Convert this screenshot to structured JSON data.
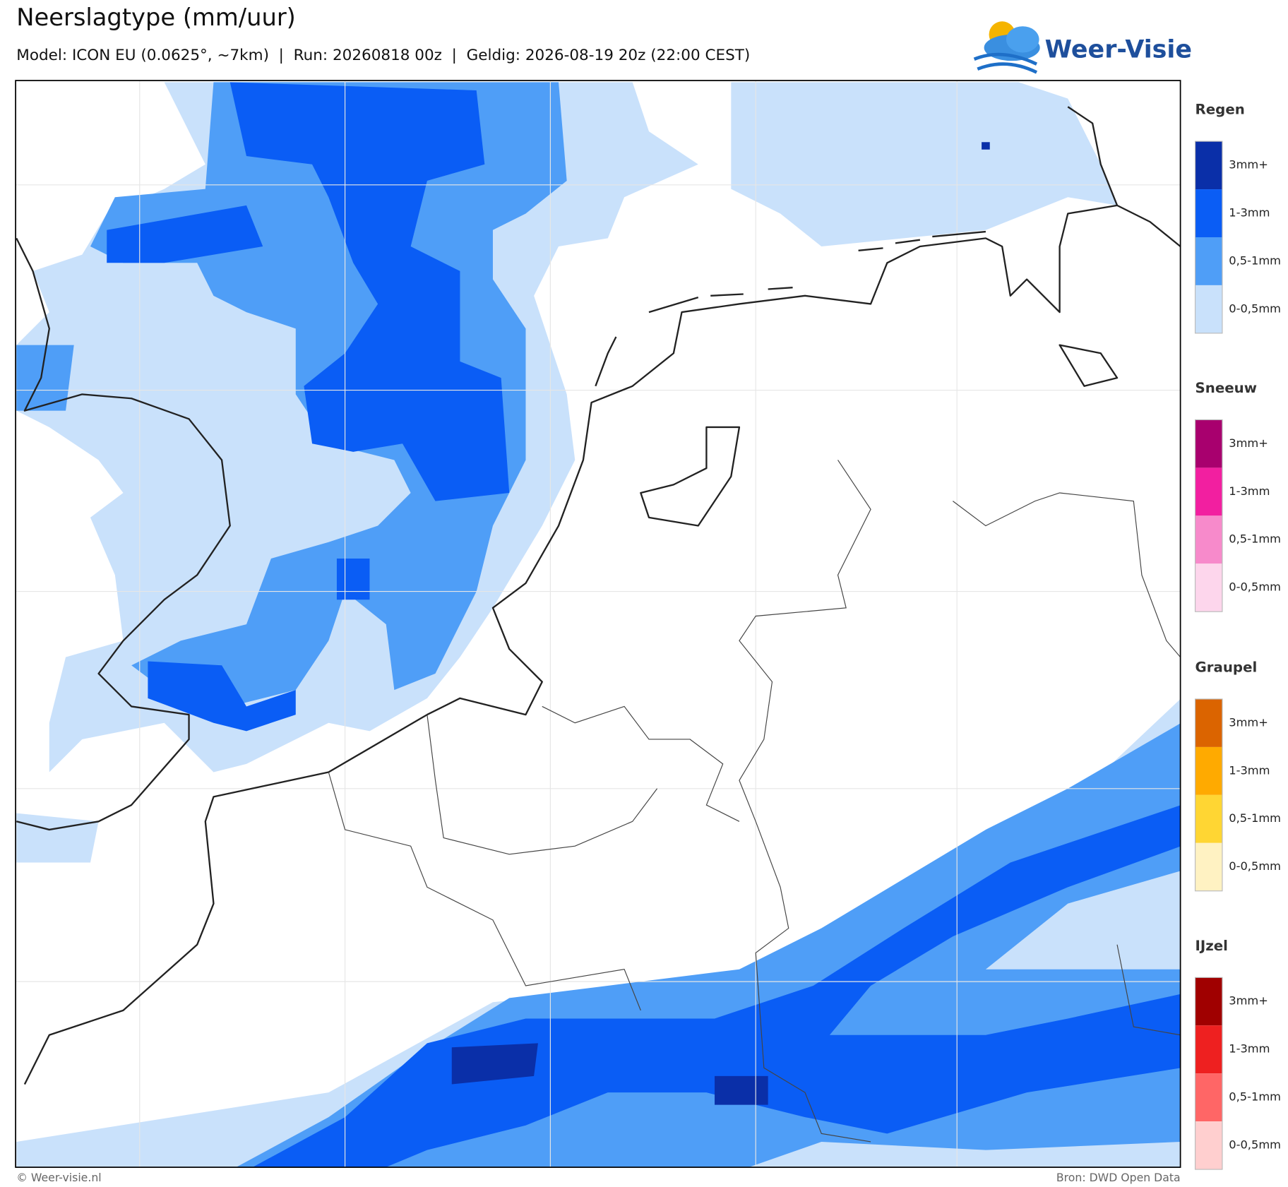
{
  "header": {
    "title": "Neerslagtype (mm/uur)",
    "subtitle": "Model: ICON EU (0.0625°, ~7km)  |  Run: 20260818 00z  |  Geldig: 2026-08-19 20z (22:00 CEST)"
  },
  "logo": {
    "text": "Weer-Visie"
  },
  "legend": {
    "sections": [
      {
        "title": "Regen",
        "items": [
          {
            "label": "3mm+",
            "color": "#0a2fa8"
          },
          {
            "label": "1-3mm",
            "color": "#0a5df5"
          },
          {
            "label": "0,5-1mm",
            "color": "#4f9ef7"
          },
          {
            "label": "0-0,5mm",
            "color": "#c9e1fb"
          }
        ]
      },
      {
        "title": "Sneeuw",
        "items": [
          {
            "label": "3mm+",
            "color": "#a8006e"
          },
          {
            "label": "1-3mm",
            "color": "#f21fa0"
          },
          {
            "label": "0,5-1mm",
            "color": "#f78acb"
          },
          {
            "label": "0-0,5mm",
            "color": "#fdd6ec"
          }
        ]
      },
      {
        "title": "Graupel",
        "items": [
          {
            "label": "3mm+",
            "color": "#db6400"
          },
          {
            "label": "1-3mm",
            "color": "#ffaa00"
          },
          {
            "label": "0,5-1mm",
            "color": "#ffd633"
          },
          {
            "label": "0-0,5mm",
            "color": "#fff2c2"
          }
        ]
      },
      {
        "title": "IJzel",
        "items": [
          {
            "label": "3mm+",
            "color": "#a00000"
          },
          {
            "label": "1-3mm",
            "color": "#ee2020"
          },
          {
            "label": "0,5-1mm",
            "color": "#ff6666"
          },
          {
            "label": "0-0,5mm",
            "color": "#ffcfcf"
          }
        ]
      }
    ]
  },
  "footer": {
    "left": "© Weer-visie.nl",
    "right": "Bron: DWD Open Data"
  }
}
